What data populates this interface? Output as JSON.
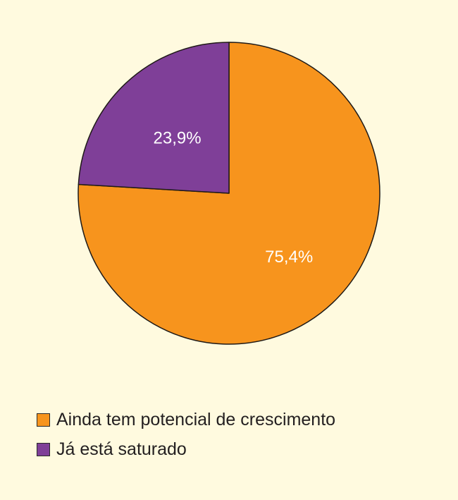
{
  "chart_data": {
    "type": "pie",
    "slices": [
      {
        "label": "Ainda tem potencial de crescimento",
        "value": 75.4,
        "value_label": "75,4%",
        "color": "#f7941d"
      },
      {
        "label": "Já está saturado",
        "value": 23.9,
        "value_label": "23,9%",
        "color": "#7f3f98"
      }
    ],
    "start_angle_deg": 0,
    "direction": "clockwise",
    "legend_position": "bottom-left",
    "background": "#fffadf"
  }
}
